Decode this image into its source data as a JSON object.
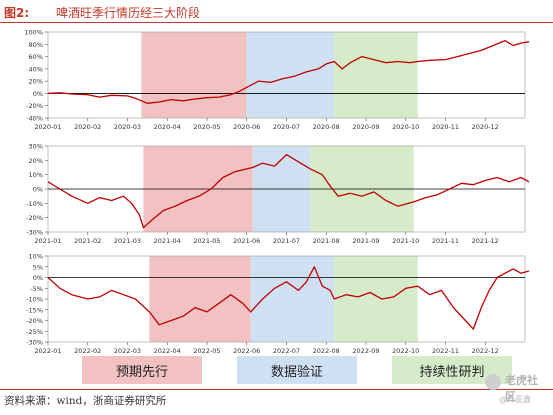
{
  "figure": {
    "number": "图2:",
    "title": "啤酒旺季行情历经三大阶段"
  },
  "legend": [
    {
      "label": "预期先行",
      "color": "#f2c2c2"
    },
    {
      "label": "数据验证",
      "color": "#cfe0f2"
    },
    {
      "label": "持续性研判",
      "color": "#d6ebc9"
    }
  ],
  "source": "资料来源：wind，浙商证券研究所",
  "watermark": {
    "main": "老虎社区",
    "sub": "@阡亚鑫"
  },
  "colors": {
    "line": "#c00000",
    "title": "#c0392b",
    "zero_line": "#000000"
  },
  "chart_data": [
    {
      "type": "line",
      "series_color": "#c00000",
      "x_ticks": [
        "2020-01",
        "2020-02",
        "2020-03",
        "2020-04",
        "2020-05",
        "2020-06",
        "2020-07",
        "2020-08",
        "2020-09",
        "2020-10",
        "2020-11",
        "2020-12"
      ],
      "y_ticks": [
        "100%",
        "80%",
        "60%",
        "40%",
        "20%",
        "0%",
        "-20%",
        "-40%"
      ],
      "ylim": [
        -40,
        100
      ],
      "bands": [
        {
          "start": 2.35,
          "end": 5.0,
          "phase": 0
        },
        {
          "start": 5.0,
          "end": 7.2,
          "phase": 1
        },
        {
          "start": 7.2,
          "end": 9.3,
          "phase": 2
        }
      ],
      "points": [
        [
          0,
          0
        ],
        [
          0.3,
          1
        ],
        [
          0.6,
          -1
        ],
        [
          1,
          -2
        ],
        [
          1.3,
          -6
        ],
        [
          1.6,
          -3
        ],
        [
          2,
          -4
        ],
        [
          2.2,
          -8
        ],
        [
          2.35,
          -12
        ],
        [
          2.5,
          -16
        ],
        [
          2.8,
          -14
        ],
        [
          3.1,
          -10
        ],
        [
          3.4,
          -12
        ],
        [
          3.7,
          -9
        ],
        [
          4,
          -7
        ],
        [
          4.3,
          -6
        ],
        [
          4.6,
          -2
        ],
        [
          4.8,
          3
        ],
        [
          5,
          10
        ],
        [
          5.3,
          20
        ],
        [
          5.6,
          18
        ],
        [
          5.9,
          24
        ],
        [
          6.2,
          28
        ],
        [
          6.5,
          35
        ],
        [
          6.8,
          40
        ],
        [
          7,
          48
        ],
        [
          7.2,
          52
        ],
        [
          7.4,
          40
        ],
        [
          7.6,
          50
        ],
        [
          7.9,
          60
        ],
        [
          8.2,
          55
        ],
        [
          8.5,
          50
        ],
        [
          8.8,
          52
        ],
        [
          9.1,
          50
        ],
        [
          9.3,
          52
        ],
        [
          9.6,
          54
        ],
        [
          10,
          55
        ],
        [
          10.3,
          60
        ],
        [
          10.6,
          65
        ],
        [
          10.9,
          70
        ],
        [
          11.2,
          78
        ],
        [
          11.5,
          86
        ],
        [
          11.7,
          78
        ],
        [
          11.9,
          82
        ],
        [
          12.1,
          84
        ]
      ]
    },
    {
      "type": "line",
      "series_color": "#c00000",
      "x_ticks": [
        "2021-01",
        "2021-02",
        "2021-03",
        "2021-04",
        "2021-05",
        "2021-06",
        "2021-07",
        "2021-08",
        "2021-09",
        "2021-10",
        "2021-11",
        "2021-12"
      ],
      "y_ticks": [
        "30%",
        "20%",
        "10%",
        "0%",
        "-10%",
        "-20%",
        "-30%"
      ],
      "ylim": [
        -30,
        30
      ],
      "bands": [
        {
          "start": 2.4,
          "end": 5.15,
          "phase": 0
        },
        {
          "start": 5.15,
          "end": 6.6,
          "phase": 1
        },
        {
          "start": 6.6,
          "end": 9.2,
          "phase": 2
        }
      ],
      "points": [
        [
          0,
          5
        ],
        [
          0.3,
          0
        ],
        [
          0.6,
          -5
        ],
        [
          1,
          -10
        ],
        [
          1.3,
          -6
        ],
        [
          1.6,
          -8
        ],
        [
          1.9,
          -5
        ],
        [
          2.1,
          -10
        ],
        [
          2.3,
          -18
        ],
        [
          2.4,
          -27
        ],
        [
          2.6,
          -22
        ],
        [
          2.9,
          -15
        ],
        [
          3.2,
          -12
        ],
        [
          3.5,
          -8
        ],
        [
          3.8,
          -5
        ],
        [
          4.1,
          0
        ],
        [
          4.4,
          8
        ],
        [
          4.7,
          12
        ],
        [
          5,
          14
        ],
        [
          5.15,
          15
        ],
        [
          5.4,
          18
        ],
        [
          5.7,
          16
        ],
        [
          6,
          24
        ],
        [
          6.3,
          19
        ],
        [
          6.6,
          14
        ],
        [
          6.9,
          10
        ],
        [
          7.1,
          2
        ],
        [
          7.3,
          -5
        ],
        [
          7.6,
          -3
        ],
        [
          7.9,
          -5
        ],
        [
          8.2,
          -2
        ],
        [
          8.5,
          -8
        ],
        [
          8.8,
          -12
        ],
        [
          9.2,
          -9
        ],
        [
          9.5,
          -6
        ],
        [
          9.8,
          -4
        ],
        [
          10.1,
          0
        ],
        [
          10.4,
          4
        ],
        [
          10.7,
          3
        ],
        [
          11,
          6
        ],
        [
          11.3,
          8
        ],
        [
          11.6,
          5
        ],
        [
          11.9,
          8
        ],
        [
          12.1,
          5
        ]
      ]
    },
    {
      "type": "line",
      "series_color": "#c00000",
      "x_ticks": [
        "2022-01",
        "2022-02",
        "2022-03",
        "2022-04",
        "2022-05",
        "2022-06",
        "2022-07",
        "2022-08",
        "2022-09",
        "2022-10",
        "2022-11",
        "2022-12"
      ],
      "y_ticks": [
        "10%",
        "5%",
        "0%",
        "-5%",
        "-10%",
        "-15%",
        "-20%",
        "-25%",
        "-30%"
      ],
      "ylim": [
        -30,
        10
      ],
      "bands": [
        {
          "start": 2.55,
          "end": 5.1,
          "phase": 0
        },
        {
          "start": 5.1,
          "end": 7.2,
          "phase": 1
        },
        {
          "start": 7.2,
          "end": 9.3,
          "phase": 2
        }
      ],
      "points": [
        [
          0,
          0
        ],
        [
          0.3,
          -5
        ],
        [
          0.6,
          -8
        ],
        [
          1,
          -10
        ],
        [
          1.3,
          -9
        ],
        [
          1.6,
          -6
        ],
        [
          1.9,
          -8
        ],
        [
          2.2,
          -10
        ],
        [
          2.55,
          -16
        ],
        [
          2.8,
          -22
        ],
        [
          3.1,
          -20
        ],
        [
          3.4,
          -18
        ],
        [
          3.7,
          -14
        ],
        [
          4,
          -16
        ],
        [
          4.3,
          -12
        ],
        [
          4.6,
          -8
        ],
        [
          4.9,
          -12
        ],
        [
          5.1,
          -16
        ],
        [
          5.4,
          -10
        ],
        [
          5.7,
          -5
        ],
        [
          6,
          -2
        ],
        [
          6.3,
          -6
        ],
        [
          6.5,
          -2
        ],
        [
          6.7,
          5
        ],
        [
          6.9,
          -4
        ],
        [
          7.1,
          -6
        ],
        [
          7.2,
          -10
        ],
        [
          7.5,
          -8
        ],
        [
          7.8,
          -9
        ],
        [
          8.1,
          -7
        ],
        [
          8.4,
          -10
        ],
        [
          8.7,
          -9
        ],
        [
          9,
          -5
        ],
        [
          9.3,
          -4
        ],
        [
          9.6,
          -8
        ],
        [
          9.9,
          -6
        ],
        [
          10.2,
          -14
        ],
        [
          10.5,
          -20
        ],
        [
          10.7,
          -24
        ],
        [
          10.9,
          -14
        ],
        [
          11.1,
          -6
        ],
        [
          11.3,
          0
        ],
        [
          11.5,
          2
        ],
        [
          11.7,
          4
        ],
        [
          11.9,
          2
        ],
        [
          12.1,
          3
        ]
      ]
    }
  ]
}
